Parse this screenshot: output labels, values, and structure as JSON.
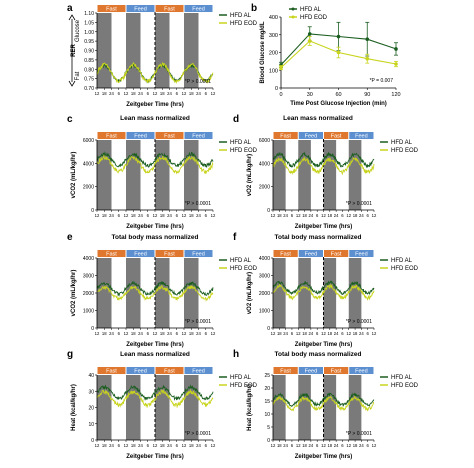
{
  "figure": {
    "colors": {
      "hfd_al": "#1b5e20",
      "hfd_eod": "#c8d41c",
      "fast": "#e0772e",
      "feed": "#5b8fd0",
      "dark_band": "#7a7a7a"
    }
  },
  "chart_data": [
    {
      "id": "a",
      "panel_letter": "a",
      "type": "line",
      "title": "",
      "xlabel": "Zeitgeber Time (hrs)",
      "ylabel": "RER",
      "ylim": [
        0.7,
        1.1
      ],
      "yticks": [
        "0.70",
        "0.75",
        "0.80",
        "0.85",
        "0.90",
        "0.95",
        "1.00",
        "1.05",
        "1.10"
      ],
      "xticks": [
        "12",
        "18",
        "24",
        "6",
        "12",
        "18",
        "24",
        "6",
        "12",
        "18",
        "24",
        "6",
        "12",
        "18",
        "24",
        "6",
        "12"
      ],
      "bars": [
        "Fast",
        "Feed",
        "Fast",
        "Feed"
      ],
      "side_labels": {
        "glucose": "Glucose",
        "fat": "Fat"
      },
      "legend": [
        "HFD AL",
        "HFD EOD"
      ],
      "annotation": "*P > 0.0001",
      "series": [
        {
          "name": "HFD AL",
          "base": 0.78,
          "amp": 0.04,
          "noise": 0.008
        },
        {
          "name": "HFD EOD",
          "base": 0.78,
          "amp": 0.045,
          "noise": 0.01
        }
      ]
    },
    {
      "id": "b",
      "panel_letter": "b",
      "type": "line",
      "title": "",
      "xlabel": "Time Post Glucose Injection (min)",
      "ylabel": "Blood Glucose mg/dL",
      "ylim": [
        0,
        400
      ],
      "yticks": [
        "0",
        "100",
        "200",
        "300",
        "400"
      ],
      "xticks": [
        "0",
        "30",
        "60",
        "90",
        "120"
      ],
      "legend": [
        "HFD AL",
        "HFD EOD"
      ],
      "annotation": "*P = 0.007",
      "x": [
        0,
        30,
        60,
        90,
        120
      ],
      "series": [
        {
          "name": "HFD AL",
          "values": [
            130,
            305,
            290,
            275,
            220
          ],
          "errors": [
            15,
            40,
            80,
            95,
            35
          ]
        },
        {
          "name": "HFD EOD",
          "values": [
            115,
            265,
            200,
            165,
            135
          ],
          "errors": [
            12,
            25,
            30,
            25,
            15
          ]
        }
      ]
    },
    {
      "id": "c",
      "panel_letter": "c",
      "type": "line",
      "title": "Lean mass normalized",
      "xlabel": "Zeitgeber Time (hrs)",
      "ylabel": "vCO2 (mL/kg/hr)",
      "ylim": [
        0,
        6000
      ],
      "yticks": [
        "0",
        "2000",
        "4000",
        "6000"
      ],
      "xticks": [
        "12",
        "18",
        "24",
        "6",
        "12",
        "18",
        "24",
        "6",
        "12",
        "18",
        "24",
        "6",
        "12",
        "18",
        "24",
        "6",
        "12"
      ],
      "bars": [
        "Fast",
        "Feed",
        "Fast",
        "Feed"
      ],
      "legend": [
        "HFD AL",
        "HFD EOD"
      ],
      "annotation": "*P > 0.0001",
      "series": [
        {
          "name": "HFD AL",
          "base": 4300,
          "amp": 500,
          "noise": 150
        },
        {
          "name": "HFD EOD",
          "base": 3900,
          "amp": 600,
          "noise": 180
        }
      ]
    },
    {
      "id": "d",
      "panel_letter": "d",
      "type": "line",
      "title": "Lean mass normalized",
      "xlabel": "Zeitgeber Time (hrs)",
      "ylabel": "vO2 (mL/kg/hr)",
      "ylim": [
        0,
        6000
      ],
      "yticks": [
        "0",
        "2000",
        "4000",
        "6000"
      ],
      "xticks": [
        "12",
        "18",
        "24",
        "6",
        "12",
        "18",
        "24",
        "6",
        "12",
        "18",
        "24",
        "6",
        "12",
        "18",
        "24",
        "6",
        "12"
      ],
      "bars": [
        "Fast",
        "Feed",
        "Fast",
        "Feed"
      ],
      "legend": [
        "HFD AL",
        "HFD EOD"
      ],
      "annotation": "*P > 0.0001",
      "series": [
        {
          "name": "HFD AL",
          "base": 4300,
          "amp": 500,
          "noise": 150
        },
        {
          "name": "HFD EOD",
          "base": 3800,
          "amp": 550,
          "noise": 170
        }
      ]
    },
    {
      "id": "e",
      "panel_letter": "e",
      "type": "line",
      "title": "Total body mass normalized",
      "xlabel": "Zeitgeber Time (hrs)",
      "ylabel": "vCO2 (mL/kg/hr)",
      "ylim": [
        0,
        4000
      ],
      "yticks": [
        "0",
        "1000",
        "2000",
        "3000",
        "4000"
      ],
      "xticks": [
        "12",
        "18",
        "24",
        "6",
        "12",
        "18",
        "24",
        "6",
        "12",
        "18",
        "24",
        "6",
        "12",
        "18",
        "24",
        "6",
        "12"
      ],
      "bars": [
        "Fast",
        "Feed",
        "Fast",
        "Feed"
      ],
      "legend": [
        "HFD AL",
        "HFD EOD"
      ],
      "annotation": "*P > 0.0001",
      "series": [
        {
          "name": "HFD AL",
          "base": 2250,
          "amp": 300,
          "noise": 90
        },
        {
          "name": "HFD EOD",
          "base": 2000,
          "amp": 330,
          "noise": 100
        }
      ]
    },
    {
      "id": "f",
      "panel_letter": "f",
      "type": "line",
      "title": "Total body mass normalized",
      "xlabel": "Zeitgeber Time (hrs)",
      "ylabel": "vO2 (mL/kg/hr)",
      "ylim": [
        0,
        4000
      ],
      "yticks": [
        "0",
        "1000",
        "2000",
        "3000",
        "4000"
      ],
      "xticks": [
        "12",
        "18",
        "24",
        "6",
        "12",
        "18",
        "24",
        "6",
        "12",
        "18",
        "24",
        "6",
        "12",
        "18",
        "24",
        "6",
        "12"
      ],
      "bars": [
        "Fast",
        "Feed",
        "Fast",
        "Feed"
      ],
      "legend": [
        "HFD AL",
        "HFD EOD"
      ],
      "annotation": "*P > 0.0001",
      "series": [
        {
          "name": "HFD AL",
          "base": 2300,
          "amp": 300,
          "noise": 90
        },
        {
          "name": "HFD EOD",
          "base": 2050,
          "amp": 320,
          "noise": 100
        }
      ]
    },
    {
      "id": "g",
      "panel_letter": "g",
      "type": "line",
      "title": "Lean mass normalized",
      "xlabel": "Zeitgeber Time (hrs)",
      "ylabel": "Heat (kcal/kg/hr)",
      "ylim": [
        0,
        40
      ],
      "yticks": [
        "0",
        "10",
        "20",
        "30",
        "40"
      ],
      "xticks": [
        "12",
        "18",
        "24",
        "6",
        "12",
        "18",
        "24",
        "6",
        "12",
        "18",
        "24",
        "6",
        "12",
        "18",
        "24",
        "6",
        "12"
      ],
      "bars": [
        "Fast",
        "Feed",
        "Fast",
        "Feed"
      ],
      "legend": [
        "HFD AL",
        "HFD EOD"
      ],
      "annotation": "*P > 0.0001",
      "series": [
        {
          "name": "HFD AL",
          "base": 29,
          "amp": 3.5,
          "noise": 1.0
        },
        {
          "name": "HFD EOD",
          "base": 25.5,
          "amp": 4,
          "noise": 1.2
        }
      ]
    },
    {
      "id": "h",
      "panel_letter": "h",
      "type": "line",
      "title": "Total body mass normalized",
      "xlabel": "Zeitgeber Time (hrs)",
      "ylabel": "Heat (kcal/kg/hr)",
      "ylim": [
        0,
        25
      ],
      "yticks": [
        "0",
        "5",
        "10",
        "15",
        "20",
        "25"
      ],
      "xticks": [
        "12",
        "18",
        "24",
        "6",
        "12",
        "18",
        "24",
        "6",
        "12",
        "18",
        "24",
        "6",
        "12",
        "18",
        "24",
        "6",
        "12"
      ],
      "bars": [
        "Fast",
        "Feed",
        "Fast",
        "Feed"
      ],
      "legend": [
        "HFD AL",
        "HFD EOD"
      ],
      "annotation": "*P > 0.0001",
      "series": [
        {
          "name": "HFD AL",
          "base": 15.5,
          "amp": 2,
          "noise": 0.6
        },
        {
          "name": "HFD EOD",
          "base": 14,
          "amp": 2.2,
          "noise": 0.7
        }
      ]
    }
  ]
}
